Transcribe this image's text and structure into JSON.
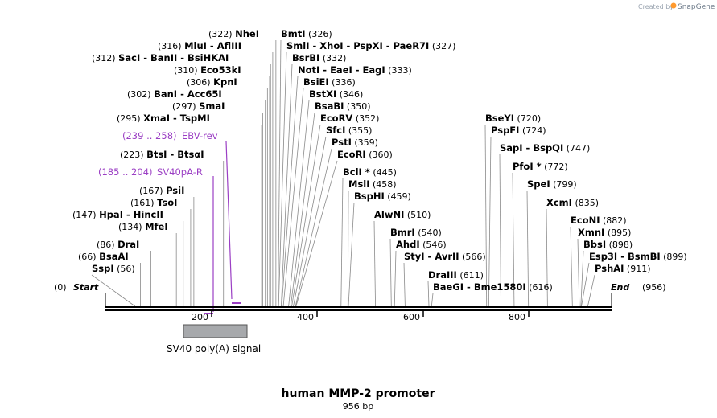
{
  "watermark": {
    "prefix": "Created by",
    "brand": "SnapGene"
  },
  "title": "human MMP-2 promoter",
  "length_label": "956 bp",
  "sequence": {
    "start": "Start",
    "start_pos": "(0)",
    "end": "End",
    "end_pos": "(956)"
  },
  "ruler_ticks": [
    "200",
    "400",
    "600",
    "800"
  ],
  "feature": {
    "name": "SV40 poly(A) signal"
  },
  "primers": [
    {
      "name": "SV40pA-R",
      "range": "(185 .. 204)"
    },
    {
      "name": "EBV-rev",
      "range": "(239 .. 258)"
    }
  ],
  "sites": [
    {
      "names": [
        "SspI"
      ],
      "pos": "(56)"
    },
    {
      "names": [
        "BsaAI"
      ],
      "pos": "(66)"
    },
    {
      "names": [
        "DraI"
      ],
      "pos": "(86)"
    },
    {
      "names": [
        "MfeI"
      ],
      "pos": "(134)"
    },
    {
      "names": [
        "HpaI",
        "HincII"
      ],
      "pos": "(147)"
    },
    {
      "names": [
        "TsoI"
      ],
      "pos": "(161)"
    },
    {
      "names": [
        "PsiI"
      ],
      "pos": "(167)"
    },
    {
      "names": [
        "BtsI",
        "BtsαI"
      ],
      "pos": "(223)"
    },
    {
      "names": [
        "XmaI",
        "TspMI"
      ],
      "pos": "(295)"
    },
    {
      "names": [
        "SmaI"
      ],
      "pos": "(297)"
    },
    {
      "names": [
        "BanI",
        "Acc65I"
      ],
      "pos": "(302)"
    },
    {
      "names": [
        "KpnI"
      ],
      "pos": "(306)"
    },
    {
      "names": [
        "Eco53kI"
      ],
      "pos": "(310)"
    },
    {
      "names": [
        "SacI",
        "BanII",
        "BsiHKAI"
      ],
      "pos": "(312)"
    },
    {
      "names": [
        "MluI",
        "AflIII"
      ],
      "pos": "(316)"
    },
    {
      "names": [
        "NheI"
      ],
      "pos": "(322)"
    },
    {
      "names": [
        "BmtI"
      ],
      "pos": "(326)"
    },
    {
      "names": [
        "SmlI",
        "XhoI",
        "PspXI",
        "PaeR7I"
      ],
      "pos": "(327)"
    },
    {
      "names": [
        "BsrBI"
      ],
      "pos": "(332)"
    },
    {
      "names": [
        "NotI",
        "EaeI",
        "EagI"
      ],
      "pos": "(333)"
    },
    {
      "names": [
        "BsiEI"
      ],
      "pos": "(336)"
    },
    {
      "names": [
        "BstXI"
      ],
      "pos": "(346)"
    },
    {
      "names": [
        "BsaBI"
      ],
      "pos": "(350)"
    },
    {
      "names": [
        "EcoRV"
      ],
      "pos": "(352)"
    },
    {
      "names": [
        "SfcI"
      ],
      "pos": "(355)"
    },
    {
      "names": [
        "PstI"
      ],
      "pos": "(359)"
    },
    {
      "names": [
        "EcoRI"
      ],
      "pos": "(360)"
    },
    {
      "names": [
        "BclI *"
      ],
      "pos": "(445)"
    },
    {
      "names": [
        "MslI"
      ],
      "pos": "(458)"
    },
    {
      "names": [
        "BspHI"
      ],
      "pos": "(459)"
    },
    {
      "names": [
        "AlwNI"
      ],
      "pos": "(510)"
    },
    {
      "names": [
        "BmrI"
      ],
      "pos": "(540)"
    },
    {
      "names": [
        "AhdI"
      ],
      "pos": "(546)"
    },
    {
      "names": [
        "StyI",
        "AvrII"
      ],
      "pos": "(566)"
    },
    {
      "names": [
        "DraIII"
      ],
      "pos": "(611)"
    },
    {
      "names": [
        "BaeGI",
        "Bme1580I"
      ],
      "pos": "(616)"
    },
    {
      "names": [
        "BseYI"
      ],
      "pos": "(720)"
    },
    {
      "names": [
        "PspFI"
      ],
      "pos": "(724)"
    },
    {
      "names": [
        "SapI",
        "BspQI"
      ],
      "pos": "(747)"
    },
    {
      "names": [
        "PfoI *"
      ],
      "pos": "(772)"
    },
    {
      "names": [
        "SpeI"
      ],
      "pos": "(799)"
    },
    {
      "names": [
        "XcmI"
      ],
      "pos": "(835)"
    },
    {
      "names": [
        "EcoNI"
      ],
      "pos": "(882)"
    },
    {
      "names": [
        "XmnI"
      ],
      "pos": "(895)"
    },
    {
      "names": [
        "BbsI"
      ],
      "pos": "(898)"
    },
    {
      "names": [
        "Esp3I",
        "BsmBI"
      ],
      "pos": "(899)"
    },
    {
      "names": [
        "PshAI"
      ],
      "pos": "(911)"
    }
  ]
}
